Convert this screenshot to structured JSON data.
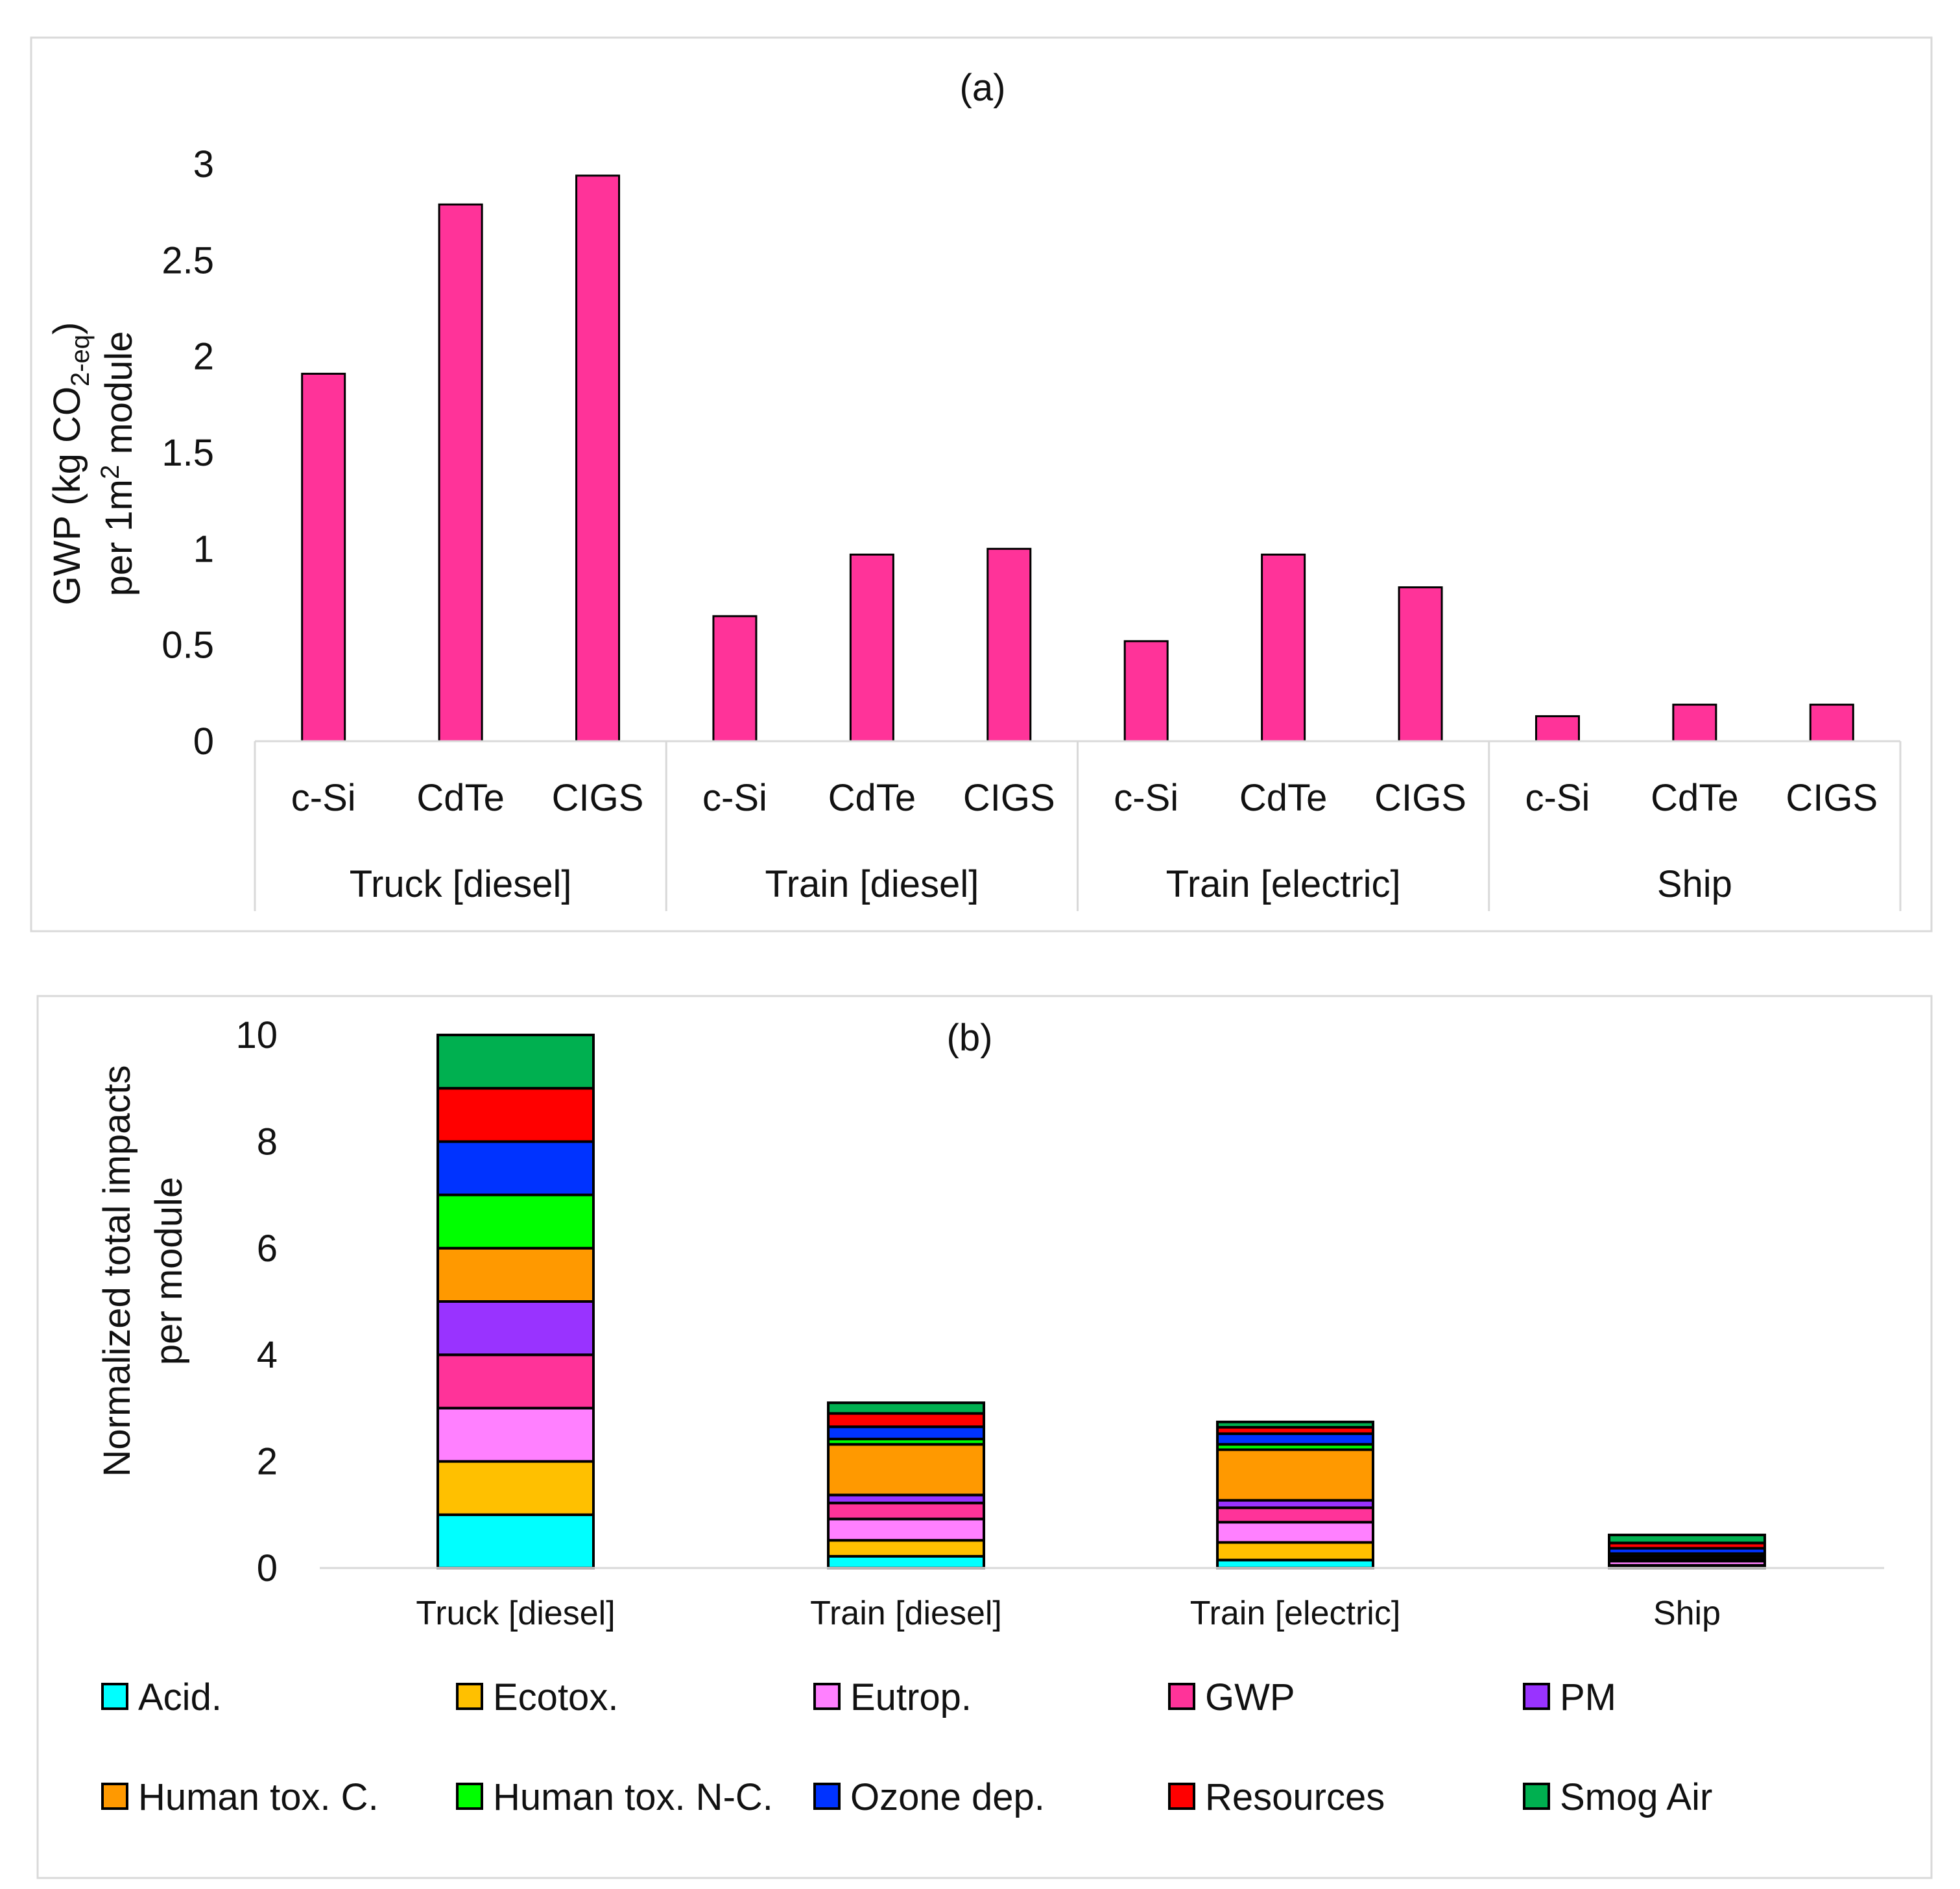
{
  "chart_data": [
    {
      "type": "bar",
      "title": "(a)",
      "ylabel_line1": "GWP (kg CO",
      "ylabel_sub": "2-eq",
      "ylabel_line1_end": ")",
      "ylabel_line2_start": "per 1m",
      "ylabel_sup": "2",
      "ylabel_line2_end": " module",
      "ylim": [
        0,
        3
      ],
      "yticks": [
        "0",
        "0.5",
        "1",
        "1.5",
        "2",
        "2.5",
        "3"
      ],
      "ytick_values": [
        0,
        0.5,
        1,
        1.5,
        2,
        2.5,
        3
      ],
      "groups": [
        {
          "label": "Truck [diesel]",
          "bars": [
            {
              "label": "c-Si",
              "value": 1.91
            },
            {
              "label": "CdTe",
              "value": 2.79
            },
            {
              "label": "CIGS",
              "value": 2.94
            }
          ]
        },
        {
          "label": "Train [diesel]",
          "bars": [
            {
              "label": "c-Si",
              "value": 0.65
            },
            {
              "label": "CdTe",
              "value": 0.97
            },
            {
              "label": "CIGS",
              "value": 1.0
            }
          ]
        },
        {
          "label": "Train [electric]",
          "bars": [
            {
              "label": "c-Si",
              "value": 0.52
            },
            {
              "label": "CdTe",
              "value": 0.97
            },
            {
              "label": "CIGS",
              "value": 0.8
            }
          ]
        },
        {
          "label": "Ship",
          "bars": [
            {
              "label": "c-Si",
              "value": 0.13
            },
            {
              "label": "CdTe",
              "value": 0.19
            },
            {
              "label": "CIGS",
              "value": 0.19
            }
          ]
        }
      ],
      "bar_color": "#ff3399"
    },
    {
      "type": "bar",
      "stacked": true,
      "title": "(b)",
      "ylabel_line1": "Normalized total impacts",
      "ylabel_line2": "per module",
      "ylim": [
        0,
        10
      ],
      "yticks": [
        "0",
        "2",
        "4",
        "6",
        "8",
        "10"
      ],
      "ytick_values": [
        0,
        2,
        4,
        6,
        8,
        10
      ],
      "categories": [
        "Truck [diesel]",
        "Train [diesel]",
        "Train [electric]",
        "Ship"
      ],
      "series": [
        {
          "name": "Acid.",
          "color": "#00ffff",
          "values": [
            1.0,
            0.22,
            0.15,
            0.02
          ]
        },
        {
          "name": "Ecotox.",
          "color": "#ffc000",
          "values": [
            1.0,
            0.3,
            0.33,
            0.03
          ]
        },
        {
          "name": "Eutrop.",
          "color": "#ff80ff",
          "values": [
            1.0,
            0.4,
            0.38,
            0.08
          ]
        },
        {
          "name": "GWP",
          "color": "#ff3399",
          "values": [
            1.0,
            0.3,
            0.27,
            0.02
          ]
        },
        {
          "name": "PM",
          "color": "#9933ff",
          "values": [
            1.0,
            0.15,
            0.14,
            0.02
          ]
        },
        {
          "name": "Human tox. C.",
          "color": "#ff9900",
          "values": [
            1.0,
            0.95,
            0.95,
            0.05
          ]
        },
        {
          "name": "Human tox. N-C.",
          "color": "#00ff00",
          "values": [
            1.0,
            0.1,
            0.1,
            0.05
          ]
        },
        {
          "name": "Ozone dep.",
          "color": "#0033ff",
          "values": [
            1.0,
            0.23,
            0.2,
            0.1
          ]
        },
        {
          "name": "Resources",
          "color": "#ff0000",
          "values": [
            1.0,
            0.25,
            0.12,
            0.1
          ]
        },
        {
          "name": "Smog Air",
          "color": "#00b050",
          "values": [
            1.0,
            0.2,
            0.1,
            0.15
          ]
        }
      ]
    }
  ]
}
